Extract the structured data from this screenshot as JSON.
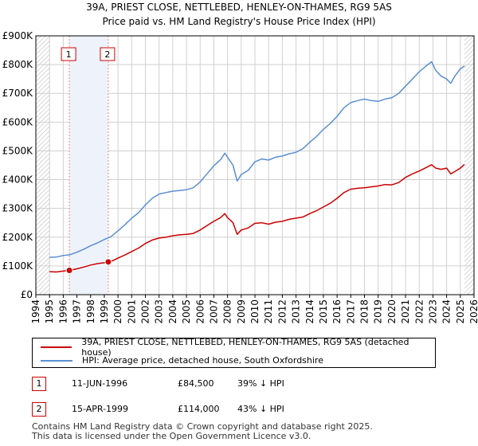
{
  "chart_data": {
    "type": "line",
    "title": "39A, PRIEST CLOSE, NETTLEBED, HENLEY-ON-THAMES, RG9 5AS",
    "subtitle": "Price paid vs. HM Land Registry's House Price Index (HPI)",
    "xlabel": "",
    "ylabel": "",
    "xlim": [
      1994,
      2026
    ],
    "ylim": [
      0,
      900000
    ],
    "x_ticks": [
      "1994",
      "1995",
      "1996",
      "1997",
      "1998",
      "1999",
      "2000",
      "2001",
      "2002",
      "2003",
      "2004",
      "2005",
      "2006",
      "2007",
      "2008",
      "2009",
      "2010",
      "2011",
      "2012",
      "2013",
      "2014",
      "2015",
      "2016",
      "2017",
      "2018",
      "2019",
      "2020",
      "2021",
      "2022",
      "2023",
      "2024",
      "2025",
      "2026"
    ],
    "y_ticks": [
      {
        "value": 0,
        "label": "£0"
      },
      {
        "value": 100000,
        "label": "£100K"
      },
      {
        "value": 200000,
        "label": "£200K"
      },
      {
        "value": 300000,
        "label": "£300K"
      },
      {
        "value": 400000,
        "label": "£400K"
      },
      {
        "value": 500000,
        "label": "£500K"
      },
      {
        "value": 600000,
        "label": "£600K"
      },
      {
        "value": 700000,
        "label": "£700K"
      },
      {
        "value": 800000,
        "label": "£800K"
      },
      {
        "value": 900000,
        "label": "£900K"
      }
    ],
    "grid": true,
    "series": [
      {
        "name": "39A, PRIEST CLOSE, NETTLEBED, HENLEY-ON-THAMES, RG9 5AS (detached house)",
        "color": "#cc0000",
        "x": [
          1995.0,
          1995.5,
          1996.0,
          1996.45,
          1997.0,
          1997.5,
          1998.0,
          1998.5,
          1999.0,
          1999.29,
          1999.6,
          2000.0,
          2000.5,
          2001.0,
          2001.5,
          2002.0,
          2002.5,
          2003.0,
          2003.5,
          2004.0,
          2004.5,
          2005.0,
          2005.5,
          2006.0,
          2006.5,
          2007.0,
          2007.5,
          2007.8,
          2008.0,
          2008.4,
          2008.7,
          2009.0,
          2009.5,
          2010.0,
          2010.5,
          2011.0,
          2011.5,
          2012.0,
          2012.5,
          2013.0,
          2013.5,
          2014.0,
          2014.5,
          2015.0,
          2015.5,
          2016.0,
          2016.5,
          2017.0,
          2017.5,
          2018.0,
          2018.5,
          2019.0,
          2019.5,
          2020.0,
          2020.5,
          2021.0,
          2021.5,
          2022.0,
          2022.5,
          2022.9,
          2023.2,
          2023.6,
          2024.0,
          2024.3,
          2024.6,
          2025.0,
          2025.3
        ],
        "values": [
          80000,
          79000,
          82000,
          84500,
          90000,
          96000,
          103000,
          108000,
          111000,
          114000,
          118000,
          127000,
          138000,
          150000,
          162000,
          178000,
          190000,
          197000,
          200000,
          205000,
          208000,
          210000,
          213000,
          225000,
          240000,
          255000,
          268000,
          282000,
          268000,
          250000,
          210000,
          225000,
          232000,
          248000,
          250000,
          245000,
          252000,
          255000,
          262000,
          266000,
          270000,
          282000,
          292000,
          305000,
          318000,
          335000,
          355000,
          367000,
          370000,
          372000,
          375000,
          378000,
          383000,
          382000,
          390000,
          408000,
          420000,
          430000,
          442000,
          452000,
          440000,
          436000,
          440000,
          420000,
          428000,
          440000,
          453000
        ]
      },
      {
        "name": "HPI: Average price, detached house, South Oxfordshire",
        "color": "#5b8fd3",
        "x": [
          1995.0,
          1995.5,
          1996.0,
          1996.5,
          1997.0,
          1997.5,
          1998.0,
          1998.5,
          1999.0,
          1999.5,
          2000.0,
          2000.5,
          2001.0,
          2001.5,
          2002.0,
          2002.5,
          2003.0,
          2003.5,
          2004.0,
          2004.5,
          2005.0,
          2005.5,
          2006.0,
          2006.5,
          2007.0,
          2007.5,
          2007.8,
          2008.0,
          2008.4,
          2008.7,
          2009.0,
          2009.5,
          2010.0,
          2010.5,
          2011.0,
          2011.5,
          2012.0,
          2012.5,
          2013.0,
          2013.5,
          2014.0,
          2014.5,
          2015.0,
          2015.5,
          2016.0,
          2016.5,
          2017.0,
          2017.5,
          2018.0,
          2018.5,
          2019.0,
          2019.5,
          2020.0,
          2020.5,
          2021.0,
          2021.5,
          2022.0,
          2022.5,
          2022.9,
          2023.2,
          2023.6,
          2024.0,
          2024.3,
          2024.6,
          2025.0,
          2025.3
        ],
        "values": [
          130000,
          131000,
          136000,
          139000,
          148000,
          158000,
          170000,
          180000,
          192000,
          202000,
          222000,
          243000,
          266000,
          285000,
          312000,
          335000,
          350000,
          355000,
          360000,
          362000,
          365000,
          372000,
          392000,
          420000,
          448000,
          470000,
          492000,
          478000,
          450000,
          395000,
          418000,
          432000,
          462000,
          472000,
          468000,
          478000,
          482000,
          490000,
          495000,
          508000,
          530000,
          550000,
          575000,
          595000,
          620000,
          650000,
          668000,
          675000,
          680000,
          675000,
          672000,
          680000,
          685000,
          700000,
          725000,
          750000,
          775000,
          795000,
          810000,
          780000,
          760000,
          750000,
          735000,
          760000,
          785000,
          795000
        ]
      }
    ],
    "transactions": [
      {
        "label": "1",
        "x": 1996.45,
        "value": 84500
      },
      {
        "label": "2",
        "x": 1999.29,
        "value": 114000
      }
    ]
  },
  "legend": {
    "items": [
      {
        "label": "39A, PRIEST CLOSE, NETTLEBED, HENLEY-ON-THAMES, RG9 5AS (detached house)",
        "color": "#cc0000"
      },
      {
        "label": "HPI: Average price, detached house, South Oxfordshire",
        "color": "#5b8fd3"
      }
    ]
  },
  "table": {
    "rows": [
      {
        "num": "1",
        "date": "11-JUN-1996",
        "price": "£84,500",
        "hpi": "39% ↓ HPI"
      },
      {
        "num": "2",
        "date": "15-APR-1999",
        "price": "£114,000",
        "hpi": "43% ↓ HPI"
      }
    ]
  },
  "footer": {
    "line1": "Contains HM Land Registry data © Crown copyright and database right 2025.",
    "line2": "This data is licensed under the Open Government Licence v3.0."
  },
  "colors": {
    "price_line": "#cc0000",
    "hpi_line": "#5b8fd3",
    "grid": "#d0d0d0",
    "marker_line": "#e88a8a",
    "hatch": "#cccccc"
  }
}
